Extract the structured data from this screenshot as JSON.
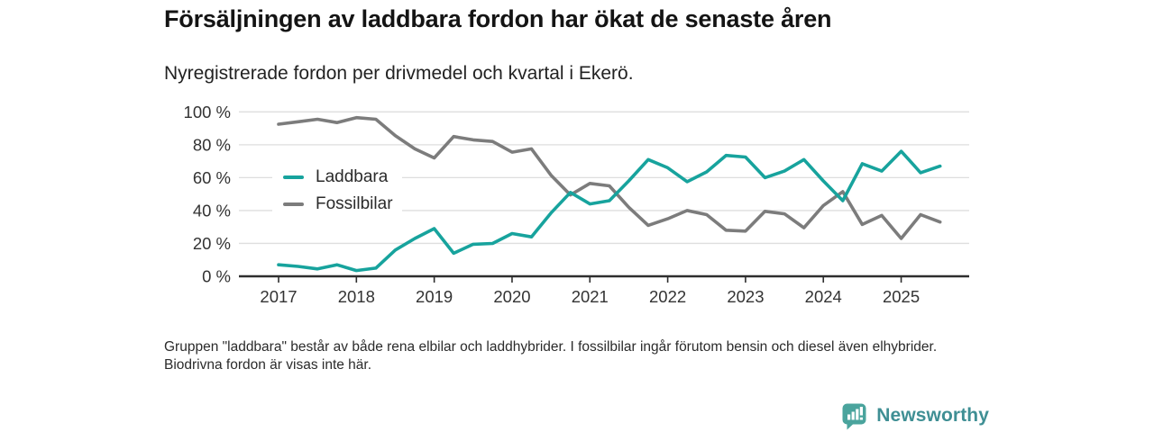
{
  "title": "Försäljningen av laddbara fordon har ökat de senaste åren",
  "subtitle": "Nyregistrerade fordon per drivmedel och kvartal i Ekerö.",
  "footnote": "Gruppen \"laddbara\" består av både rena elbilar och laddhybrider. I fossilbilar ingår förutom bensin och diesel även elhybrider. Biodrivna fordon är visas inte här.",
  "brand": {
    "name": "Newsworthy",
    "icon": "bar-chart-speech-bubble-icon",
    "text_color": "#3f8f94",
    "icon_color": "#4aa49d"
  },
  "colors": {
    "laddbara": "#17a39d",
    "fossilbilar": "#7c7c7c",
    "gridline": "#dedede",
    "axis": "#2e2e2e",
    "tick_text": "#333333"
  },
  "chart_data": {
    "type": "line",
    "x_unit": "quarter",
    "x_start": "2017 Q1",
    "x_end": "2025 Q3",
    "ylim": [
      0,
      100
    ],
    "grid": "horizontal",
    "legend_position": "inside-left",
    "y_ticks": [
      {
        "label": "0 %",
        "value": 0
      },
      {
        "label": "20 %",
        "value": 20
      },
      {
        "label": "40 %",
        "value": 40
      },
      {
        "label": "60 %",
        "value": 60
      },
      {
        "label": "80 %",
        "value": 80
      },
      {
        "label": "100 %",
        "value": 100
      }
    ],
    "year_ticks": [
      2017,
      2018,
      2019,
      2020,
      2021,
      2022,
      2023,
      2024,
      2025
    ],
    "series": [
      {
        "name": "Laddbara",
        "color": "#17a39d",
        "values": [
          7,
          6,
          4.5,
          7,
          3.5,
          5,
          16,
          23,
          29,
          14,
          19.5,
          20,
          26,
          24,
          38.5,
          51,
          44,
          46,
          58,
          71,
          66,
          57.5,
          63.5,
          73.5,
          72.5,
          60,
          64,
          71,
          58,
          46,
          68.5,
          64,
          76,
          63,
          67
        ]
      },
      {
        "name": "Fossilbilar",
        "color": "#7c7c7c",
        "values": [
          92.5,
          94,
          95.5,
          93.5,
          96.5,
          95.5,
          85.5,
          77.5,
          72,
          85,
          83,
          82,
          75.5,
          77.5,
          61.5,
          49.5,
          56.5,
          55,
          42,
          31,
          35,
          40,
          37.5,
          28,
          27.5,
          39.5,
          38,
          29.5,
          43,
          51.5,
          31.5,
          37,
          23,
          37.5,
          33
        ]
      }
    ]
  }
}
